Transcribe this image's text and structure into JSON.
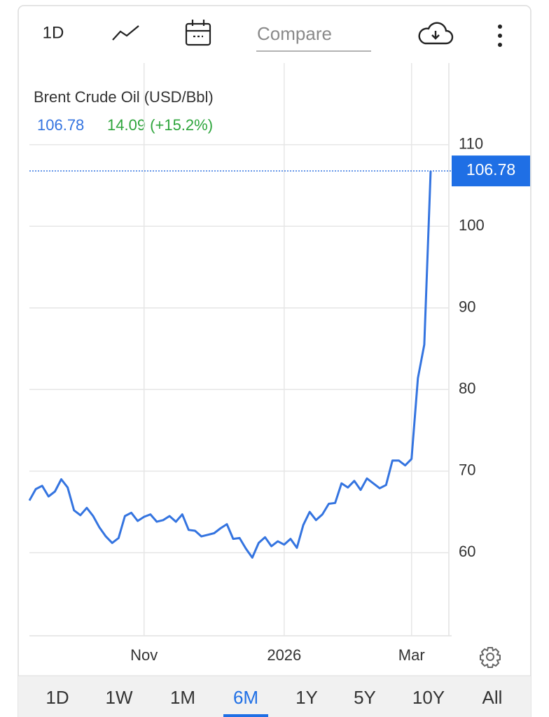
{
  "toolbar": {
    "interval": "1D",
    "compare_placeholder": "Compare"
  },
  "chart_data": {
    "type": "line",
    "title": "Brent Crude Oil (USD/Bbl)",
    "change": "14.09 (+15.2%)",
    "categories": [
      null,
      null,
      null,
      null,
      null,
      null,
      null,
      null,
      null,
      null,
      null,
      null,
      null,
      null,
      null,
      null,
      null,
      null,
      "Nov",
      null,
      null,
      null,
      null,
      null,
      null,
      null,
      null,
      null,
      null,
      null,
      null,
      null,
      null,
      null,
      null,
      null,
      null,
      null,
      null,
      null,
      "2026",
      null,
      null,
      null,
      null,
      null,
      null,
      null,
      null,
      null,
      null,
      null,
      null,
      null,
      null,
      null,
      null,
      null,
      null,
      null,
      "Mar",
      null,
      null,
      null
    ],
    "series": [
      {
        "name": "Brent Crude Oil",
        "color": "#3474e0",
        "values": [
          66.4,
          67.8,
          68.2,
          66.9,
          67.5,
          69.0,
          68.0,
          65.2,
          64.6,
          65.5,
          64.5,
          63.1,
          62.0,
          61.2,
          61.8,
          64.5,
          64.9,
          63.9,
          64.4,
          64.7,
          63.8,
          64.0,
          64.5,
          63.8,
          64.7,
          62.8,
          62.7,
          62.0,
          62.2,
          62.4,
          63.0,
          63.5,
          61.7,
          61.8,
          60.5,
          59.4,
          61.2,
          61.9,
          60.8,
          61.4,
          61.0,
          61.7,
          60.6,
          63.4,
          65.0,
          64.0,
          64.7,
          66.0,
          66.1,
          68.5,
          68.0,
          68.8,
          67.7,
          69.1,
          68.5,
          67.9,
          68.3,
          71.3,
          71.3,
          70.7,
          71.5,
          81.4,
          85.5,
          106.78
        ]
      }
    ],
    "ylim": [
      50,
      120
    ],
    "yticks": [
      60,
      70,
      80,
      90,
      100,
      110
    ],
    "grid": true
  },
  "range_buttons": {
    "labels": [
      "1D",
      "1W",
      "1M",
      "6M",
      "1Y",
      "5Y",
      "10Y",
      "All"
    ],
    "active": 3
  }
}
